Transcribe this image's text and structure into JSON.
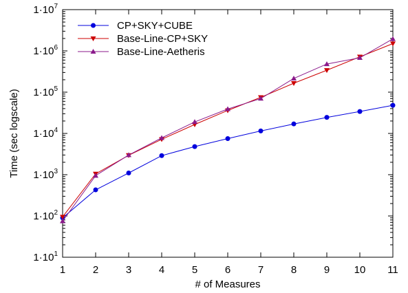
{
  "chart_data": {
    "type": "line",
    "xlabel": "# of Measures",
    "ylabel": "Time (sec logscale)",
    "yscale": "log",
    "xlim": [
      1,
      11
    ],
    "ylim": [
      10,
      10000000
    ],
    "x": [
      1,
      2,
      3,
      4,
      5,
      6,
      7,
      8,
      9,
      10,
      11
    ],
    "x_tick_labels": [
      "1",
      "2",
      "3",
      "4",
      "5",
      "6",
      "7",
      "8",
      "9",
      "10",
      "11"
    ],
    "y_ticks": [
      {
        "value": 10,
        "mantissa": "1·10",
        "exponent": "1"
      },
      {
        "value": 100,
        "mantissa": "1·10",
        "exponent": "2"
      },
      {
        "value": 1000,
        "mantissa": "1·10",
        "exponent": "3"
      },
      {
        "value": 10000,
        "mantissa": "1·10",
        "exponent": "4"
      },
      {
        "value": 100000,
        "mantissa": "1·10",
        "exponent": "5"
      },
      {
        "value": 1000000,
        "mantissa": "1·10",
        "exponent": "6"
      },
      {
        "value": 10000000,
        "mantissa": "1·10",
        "exponent": "7"
      }
    ],
    "grid": false,
    "legend_position": "top-left",
    "series": [
      {
        "name": "CP+SKY+CUBE",
        "color": "#0000dd",
        "marker": "circle",
        "values": [
          90,
          430,
          1100,
          2900,
          4800,
          7500,
          11500,
          17000,
          24500,
          34000,
          48000
        ]
      },
      {
        "name": "Base-Line-CP+SKY",
        "color": "#cc0000",
        "marker": "triangle-down",
        "values": [
          95,
          1050,
          2950,
          7200,
          16500,
          36000,
          75000,
          165000,
          340000,
          720000,
          1500000
        ]
      },
      {
        "name": "Base-Line-Aetheris",
        "color": "#8b1a8b",
        "marker": "triangle-up",
        "values": [
          75,
          950,
          3000,
          7800,
          19000,
          39000,
          70000,
          215000,
          480000,
          680000,
          1950000
        ]
      }
    ]
  }
}
